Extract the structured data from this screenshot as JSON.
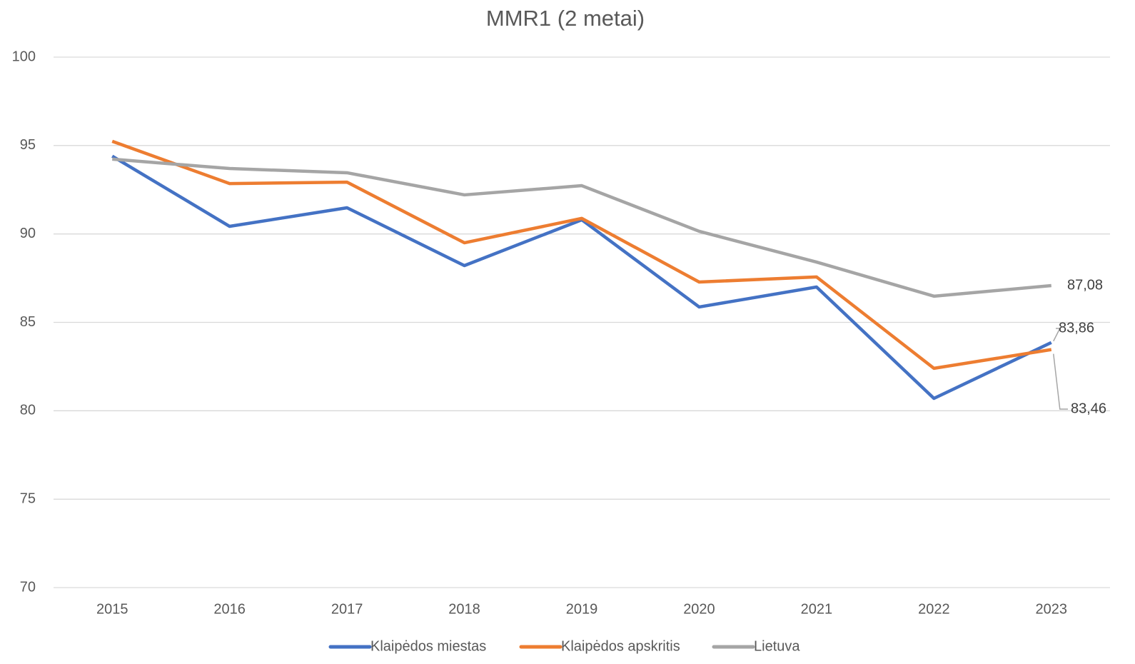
{
  "chart_data": {
    "type": "line",
    "title": "MMR1 (2 metai)",
    "categories": [
      "2015",
      "2016",
      "2017",
      "2018",
      "2019",
      "2020",
      "2021",
      "2022",
      "2023"
    ],
    "series": [
      {
        "name": "Klaipėdos miestas",
        "color": "#4472c4",
        "values": [
          94.4,
          90.43,
          91.48,
          88.21,
          90.8,
          85.87,
          87.0,
          80.7,
          83.86
        ],
        "value_labels": [
          null,
          null,
          null,
          null,
          null,
          null,
          null,
          null,
          "83,86"
        ]
      },
      {
        "name": "Klaipėdos apskritis",
        "color": "#ed7d31",
        "values": [
          95.24,
          92.85,
          92.93,
          89.5,
          90.88,
          87.28,
          87.57,
          82.4,
          83.46
        ],
        "value_labels": [
          null,
          null,
          null,
          null,
          null,
          null,
          null,
          null,
          "83,46"
        ]
      },
      {
        "name": "Lietuva",
        "color": "#a5a5a5",
        "values": [
          94.23,
          93.7,
          93.46,
          92.21,
          92.73,
          90.15,
          88.41,
          86.48,
          87.08
        ],
        "value_labels": [
          null,
          null,
          null,
          null,
          null,
          null,
          null,
          null,
          "87,08"
        ]
      }
    ],
    "ylim": [
      70,
      100
    ],
    "yticks": [
      70,
      75,
      80,
      85,
      90,
      95,
      100
    ],
    "grid": true,
    "legend": "bottom"
  }
}
